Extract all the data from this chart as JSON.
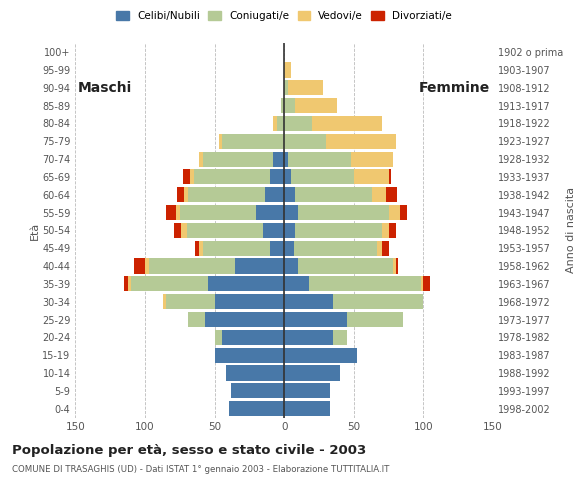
{
  "age_groups": [
    "0-4",
    "5-9",
    "10-14",
    "15-19",
    "20-24",
    "25-29",
    "30-34",
    "35-39",
    "40-44",
    "45-49",
    "50-54",
    "55-59",
    "60-64",
    "65-69",
    "70-74",
    "75-79",
    "80-84",
    "85-89",
    "90-94",
    "95-99",
    "100+"
  ],
  "birth_years": [
    "1998-2002",
    "1993-1997",
    "1988-1992",
    "1983-1987",
    "1978-1982",
    "1973-1977",
    "1968-1972",
    "1963-1967",
    "1958-1962",
    "1953-1957",
    "1948-1952",
    "1943-1947",
    "1938-1942",
    "1933-1937",
    "1928-1932",
    "1923-1927",
    "1918-1922",
    "1913-1917",
    "1908-1912",
    "1903-1907",
    "1902 o prima"
  ],
  "colors": {
    "celibe": "#4878a8",
    "coniugato": "#b5ca96",
    "vedovo": "#f0c870",
    "divorziato": "#cc2200"
  },
  "maschi": {
    "celibe": [
      40,
      38,
      42,
      50,
      45,
      57,
      50,
      55,
      35,
      10,
      15,
      20,
      14,
      10,
      8,
      0,
      0,
      0,
      0,
      0,
      0
    ],
    "coniugato": [
      0,
      0,
      0,
      0,
      5,
      12,
      35,
      55,
      62,
      48,
      55,
      55,
      55,
      55,
      50,
      45,
      5,
      2,
      0,
      0,
      0
    ],
    "vedovo": [
      0,
      0,
      0,
      0,
      0,
      0,
      2,
      2,
      3,
      3,
      4,
      3,
      3,
      3,
      3,
      2,
      3,
      0,
      0,
      0,
      0
    ],
    "divorziato": [
      0,
      0,
      0,
      0,
      0,
      0,
      0,
      3,
      8,
      3,
      5,
      7,
      5,
      5,
      0,
      0,
      0,
      0,
      0,
      0,
      0
    ]
  },
  "femmine": {
    "celibe": [
      33,
      33,
      40,
      52,
      35,
      45,
      35,
      18,
      10,
      7,
      8,
      10,
      8,
      5,
      3,
      0,
      0,
      0,
      0,
      0,
      0
    ],
    "coniugato": [
      0,
      0,
      0,
      0,
      10,
      40,
      65,
      80,
      68,
      60,
      62,
      65,
      55,
      45,
      45,
      30,
      20,
      8,
      3,
      0,
      0
    ],
    "vedovo": [
      0,
      0,
      0,
      0,
      0,
      0,
      0,
      2,
      2,
      3,
      5,
      8,
      10,
      25,
      30,
      50,
      50,
      30,
      25,
      5,
      0
    ],
    "divorziato": [
      0,
      0,
      0,
      0,
      0,
      0,
      0,
      5,
      2,
      5,
      5,
      5,
      8,
      2,
      0,
      0,
      0,
      0,
      0,
      0,
      0
    ]
  },
  "title": "Popolazione per età, sesso e stato civile - 2003",
  "subtitle": "COMUNE DI TRASAGHIS (UD) - Dati ISTAT 1° gennaio 2003 - Elaborazione TUTTITALIA.IT",
  "xlabel_left": "Maschi",
  "xlabel_right": "Femmine",
  "ylabel_left": "Età",
  "ylabel_right": "Anno di nascita",
  "xlim": 150,
  "legend_labels": [
    "Celibi/Nubili",
    "Coniugati/e",
    "Vedovi/e",
    "Divorziati/e"
  ],
  "background_color": "#ffffff",
  "grid_color": "#aaaaaa"
}
